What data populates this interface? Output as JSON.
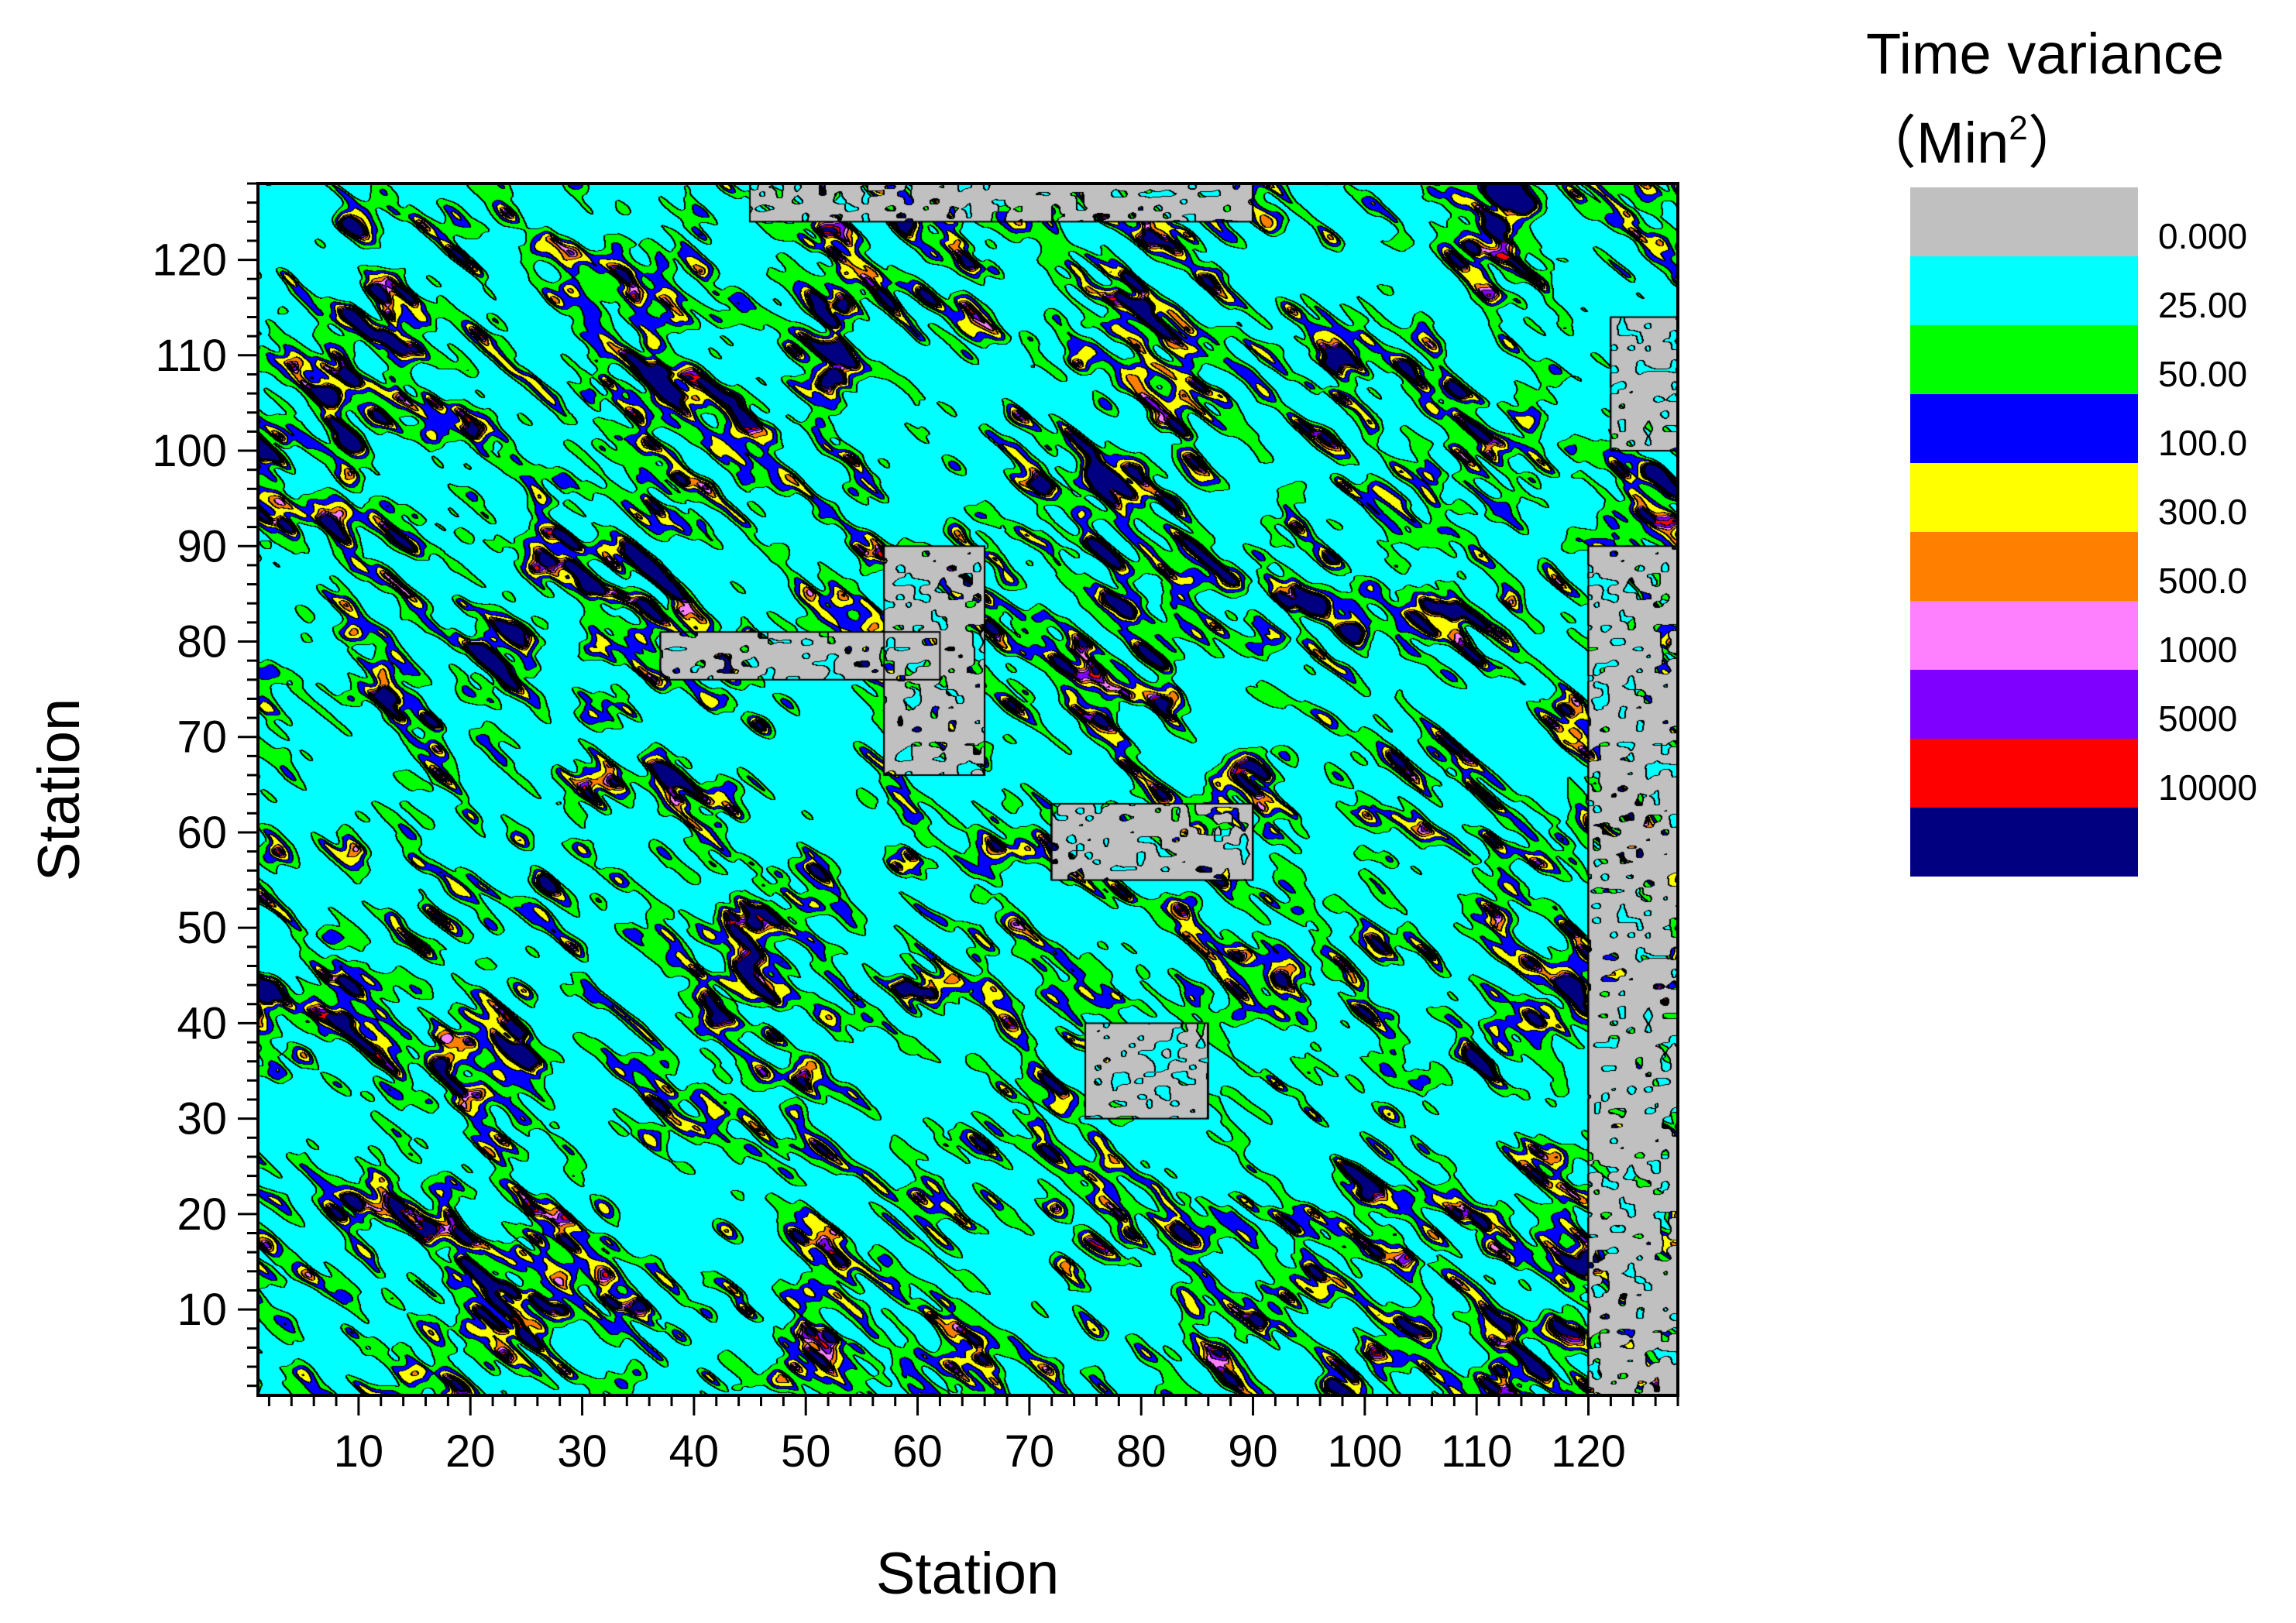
{
  "chart_data": {
    "type": "heatmap",
    "subtype": "contour",
    "title": "",
    "xlabel": "Station",
    "ylabel": "Station",
    "xlim": [
      1,
      128
    ],
    "ylim": [
      1,
      128
    ],
    "x_ticks": [
      10,
      20,
      30,
      40,
      50,
      60,
      70,
      80,
      90,
      100,
      110,
      120
    ],
    "y_ticks": [
      10,
      20,
      30,
      40,
      50,
      60,
      70,
      80,
      90,
      100,
      110,
      120
    ],
    "grid_size": [
      128,
      128
    ],
    "color_scale": {
      "title": "Time variance",
      "unit_prefix": "（Min",
      "unit_sup": "2",
      "unit_suffix": "）",
      "levels": [
        "0.000",
        "25.00",
        "50.00",
        "100.0",
        "300.0",
        "500.0",
        "1000",
        "5000",
        "10000"
      ],
      "colors": [
        "#c0c0c0",
        "#00ffff",
        "#00ff00",
        "#0000ff",
        "#ffff00",
        "#ff8000",
        "#ff80ff",
        "#8000ff",
        "#ff0000",
        "#000080"
      ],
      "placement": "right"
    },
    "zero_regions": [
      {
        "x": [
          45,
          90
        ],
        "y": [
          124,
          128
        ]
      },
      {
        "x": [
          57,
          66
        ],
        "y": [
          66,
          90
        ]
      },
      {
        "x": [
          37,
          62
        ],
        "y": [
          76,
          81
        ]
      },
      {
        "x": [
          72,
          90
        ],
        "y": [
          55,
          63
        ]
      },
      {
        "x": [
          75,
          86
        ],
        "y": [
          30,
          40
        ]
      },
      {
        "x": [
          122,
          128
        ],
        "y": [
          100,
          114
        ]
      },
      {
        "x": [
          120,
          128
        ],
        "y": [
          1,
          90
        ]
      }
    ]
  }
}
